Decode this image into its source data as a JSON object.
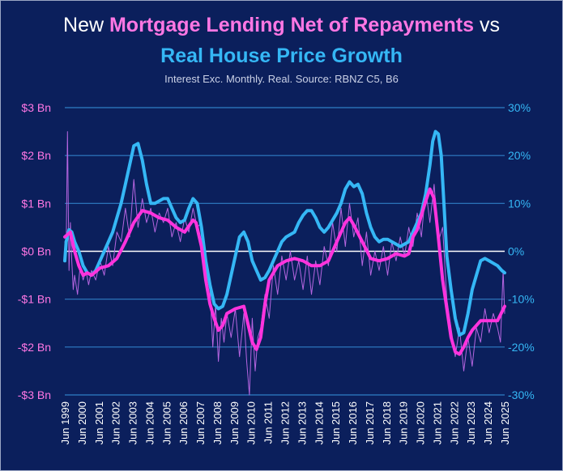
{
  "chart_data": {
    "type": "line",
    "title_prefix": "New ",
    "title_series1": "Mortgage Lending Net of Repayments",
    "title_mid": " vs",
    "title_series2": "Real House Price Growth",
    "subtitle": "Interest Exc. Monthly. Real. Source: RBNZ C5, B6",
    "left_axis": {
      "ylim": [
        -3,
        3
      ],
      "ticks": [
        3,
        2,
        1,
        0,
        -1,
        -2,
        -3
      ],
      "tick_labels": [
        "$3 Bn",
        "$2 Bn",
        "$1 Bn",
        "$0 Bn",
        "-$1 Bn",
        "-$2 Bn",
        "-$3 Bn"
      ],
      "color": "#ff77e4"
    },
    "right_axis": {
      "ylim": [
        -30,
        30
      ],
      "ticks": [
        30,
        20,
        10,
        0,
        -10,
        -20,
        -30
      ],
      "tick_labels": [
        "30%",
        "20%",
        "10%",
        "0%",
        "-10%",
        "-20%",
        "-30%"
      ],
      "color": "#35b7f5"
    },
    "x_axis": {
      "range": [
        1999.42,
        2025.42
      ],
      "tick_labels": [
        "Jun 1999",
        "Jun 2000",
        "Jun 2001",
        "Jun 2002",
        "Jun 2003",
        "Jun 2004",
        "Jun 2005",
        "Jun 2006",
        "Jun 2007",
        "Jun 2008",
        "Jun 2009",
        "Jun 2010",
        "Jun 2011",
        "Jun 2012",
        "Jun 2013",
        "Jun 2014",
        "Jun 2015",
        "Jun 2016",
        "Jun 2017",
        "Jun 2018",
        "Jun 2019",
        "Jun 2020",
        "Jun 2021",
        "Jun 2022",
        "Jun 2023",
        "Jun 2024",
        "Jun 2025"
      ]
    },
    "grid": true,
    "colors": {
      "background": "#0b1f5c",
      "grid": "#2f7fc6",
      "zero_line": "#ffffff",
      "lending_smooth": "#ff33dd",
      "lending_raw": "#b565e0",
      "house_price": "#35b7f5"
    },
    "series": [
      {
        "axis": "left",
        "style": "raw-monthly",
        "x": [
          1999.42,
          1999.5,
          1999.58,
          1999.67,
          1999.75,
          1999.83,
          1999.92,
          2000.0,
          2000.17,
          2000.33,
          2000.5,
          2000.67,
          2000.83,
          2001.0,
          2001.25,
          2001.5,
          2001.75,
          2002.0,
          2002.25,
          2002.5,
          2002.75,
          2003.0,
          2003.25,
          2003.5,
          2003.75,
          2004.0,
          2004.25,
          2004.5,
          2004.75,
          2005.0,
          2005.25,
          2005.5,
          2005.75,
          2006.0,
          2006.25,
          2006.5,
          2006.75,
          2007.0,
          2007.25,
          2007.5,
          2007.75,
          2008.0,
          2008.17,
          2008.33,
          2008.5,
          2008.67,
          2008.83,
          2009.0,
          2009.25,
          2009.5,
          2009.75,
          2010.0,
          2010.17,
          2010.33,
          2010.5,
          2010.67,
          2010.83,
          2011.0,
          2011.25,
          2011.5,
          2011.75,
          2012.0,
          2012.25,
          2012.5,
          2012.75,
          2013.0,
          2013.25,
          2013.5,
          2013.75,
          2014.0,
          2014.25,
          2014.5,
          2014.75,
          2015.0,
          2015.25,
          2015.5,
          2015.75,
          2016.0,
          2016.25,
          2016.5,
          2016.75,
          2017.0,
          2017.25,
          2017.5,
          2017.75,
          2018.0,
          2018.25,
          2018.5,
          2018.75,
          2019.0,
          2019.25,
          2019.5,
          2019.75,
          2020.0,
          2020.25,
          2020.5,
          2020.75,
          2021.0,
          2021.25,
          2021.5,
          2021.75,
          2022.0,
          2022.25,
          2022.5,
          2022.75,
          2023.0,
          2023.25,
          2023.5,
          2023.75,
          2024.0,
          2024.25,
          2024.5,
          2024.75,
          2025.0,
          2025.17,
          2025.33,
          2025.42
        ],
        "values": [
          0.2,
          0.0,
          2.5,
          -0.4,
          0.6,
          -0.2,
          -0.8,
          -0.5,
          -0.9,
          -0.3,
          -0.6,
          -0.4,
          -0.7,
          -0.4,
          -0.6,
          -0.2,
          -0.5,
          0.1,
          -0.3,
          0.4,
          0.2,
          0.9,
          0.3,
          1.5,
          0.5,
          1.1,
          0.6,
          0.9,
          0.4,
          0.8,
          0.6,
          0.9,
          0.3,
          0.6,
          0.2,
          0.7,
          0.4,
          0.9,
          0.5,
          0.6,
          -0.4,
          -0.8,
          -2.0,
          -1.1,
          -2.3,
          -1.4,
          -1.9,
          -1.3,
          -1.8,
          -1.2,
          -2.2,
          -1.3,
          -2.3,
          -3.0,
          -1.4,
          -2.5,
          -1.8,
          -1.6,
          -0.9,
          -1.4,
          -0.3,
          -0.9,
          -0.1,
          -0.6,
          0.0,
          -0.6,
          -0.2,
          -0.8,
          -0.1,
          -0.9,
          -0.2,
          -0.7,
          0.1,
          -0.3,
          0.6,
          0.0,
          0.9,
          0.1,
          1.0,
          0.3,
          0.7,
          -0.3,
          0.4,
          -0.5,
          0.0,
          -0.4,
          0.1,
          -0.5,
          0.2,
          -0.2,
          0.3,
          -0.1,
          0.5,
          0.1,
          0.8,
          0.3,
          1.3,
          0.6,
          1.4,
          0.2,
          0.5,
          -1.0,
          -1.6,
          -2.2,
          -1.6,
          -2.5,
          -1.8,
          -2.4,
          -1.6,
          -1.9,
          -1.2,
          -1.7,
          -1.3,
          -1.6,
          -1.9,
          -0.4,
          -1.3
        ]
      },
      {
        "axis": "left",
        "style": "smoothed",
        "x": [
          1999.42,
          1999.75,
          2000.0,
          2000.25,
          2000.5,
          2000.75,
          2001.0,
          2001.5,
          2002.0,
          2002.5,
          2003.0,
          2003.5,
          2004.0,
          2004.5,
          2005.0,
          2005.5,
          2006.0,
          2006.5,
          2007.0,
          2007.17,
          2007.5,
          2007.75,
          2008.0,
          2008.25,
          2008.5,
          2008.75,
          2009.0,
          2009.5,
          2010.0,
          2010.5,
          2010.75,
          2011.0,
          2011.25,
          2011.5,
          2012.0,
          2012.5,
          2013.0,
          2013.5,
          2014.0,
          2014.5,
          2015.0,
          2015.5,
          2016.0,
          2016.25,
          2016.5,
          2017.0,
          2017.5,
          2018.0,
          2018.5,
          2019.0,
          2019.5,
          2019.75,
          2020.0,
          2020.25,
          2020.5,
          2020.75,
          2021.0,
          2021.25,
          2021.5,
          2021.75,
          2022.0,
          2022.25,
          2022.5,
          2022.75,
          2023.0,
          2023.25,
          2023.5,
          2024.0,
          2024.5,
          2025.0,
          2025.42
        ],
        "values": [
          0.3,
          0.4,
          0.0,
          -0.3,
          -0.5,
          -0.45,
          -0.5,
          -0.35,
          -0.3,
          -0.15,
          0.2,
          0.6,
          0.85,
          0.8,
          0.7,
          0.65,
          0.5,
          0.4,
          0.65,
          0.6,
          0.1,
          -0.6,
          -1.1,
          -1.4,
          -1.65,
          -1.55,
          -1.3,
          -1.2,
          -1.15,
          -1.9,
          -2.05,
          -1.8,
          -1.1,
          -0.6,
          -0.3,
          -0.2,
          -0.15,
          -0.2,
          -0.3,
          -0.3,
          -0.2,
          0.2,
          0.6,
          0.7,
          0.55,
          0.2,
          -0.15,
          -0.2,
          -0.15,
          -0.05,
          -0.1,
          -0.05,
          0.3,
          0.45,
          0.75,
          1.05,
          1.3,
          1.1,
          0.3,
          -0.6,
          -1.2,
          -1.8,
          -2.1,
          -2.15,
          -2.0,
          -1.8,
          -1.65,
          -1.45,
          -1.45,
          -1.45,
          -1.15
        ]
      },
      {
        "axis": "right",
        "x": [
          1999.42,
          1999.5,
          1999.67,
          1999.83,
          2000.0,
          2000.25,
          2000.5,
          2000.75,
          2001.0,
          2001.25,
          2001.5,
          2001.75,
          2002.0,
          2002.25,
          2002.5,
          2002.75,
          2003.0,
          2003.25,
          2003.5,
          2003.75,
          2004.0,
          2004.25,
          2004.5,
          2004.75,
          2005.0,
          2005.25,
          2005.5,
          2005.75,
          2006.0,
          2006.25,
          2006.5,
          2006.75,
          2007.0,
          2007.25,
          2007.5,
          2007.75,
          2008.0,
          2008.25,
          2008.5,
          2008.75,
          2009.0,
          2009.25,
          2009.5,
          2009.75,
          2010.0,
          2010.25,
          2010.5,
          2010.75,
          2011.0,
          2011.25,
          2011.5,
          2011.75,
          2012.0,
          2012.25,
          2012.5,
          2012.75,
          2013.0,
          2013.25,
          2013.5,
          2013.75,
          2014.0,
          2014.25,
          2014.5,
          2014.75,
          2015.0,
          2015.25,
          2015.5,
          2015.75,
          2016.0,
          2016.25,
          2016.5,
          2016.75,
          2017.0,
          2017.25,
          2017.5,
          2017.75,
          2018.0,
          2018.25,
          2018.5,
          2018.75,
          2019.0,
          2019.25,
          2019.5,
          2019.75,
          2020.0,
          2020.25,
          2020.5,
          2020.75,
          2021.0,
          2021.17,
          2021.33,
          2021.5,
          2021.67,
          2021.83,
          2022.0,
          2022.25,
          2022.5,
          2022.75,
          2023.0,
          2023.25,
          2023.5,
          2023.75,
          2024.0,
          2024.25,
          2024.5,
          2024.75,
          2025.0,
          2025.25,
          2025.42
        ],
        "values": [
          -2,
          2,
          4.5,
          4,
          2,
          0,
          -3,
          -4.5,
          -5,
          -4,
          -2,
          0,
          2,
          4,
          7,
          10,
          14,
          18,
          22,
          22.5,
          19,
          14,
          10,
          10,
          10.5,
          11,
          11,
          9,
          7,
          6,
          6.5,
          9,
          11,
          10,
          5,
          -2,
          -7,
          -11,
          -12,
          -11.5,
          -9,
          -5,
          -1,
          3,
          4,
          2,
          -2,
          -4,
          -6,
          -5.5,
          -4,
          -2,
          0,
          2,
          3,
          3.5,
          4,
          6,
          7.5,
          8.5,
          8.5,
          7,
          5,
          4,
          5,
          6.5,
          8,
          10,
          13,
          14.5,
          13.5,
          14,
          12,
          8,
          5,
          3,
          2,
          2.5,
          2.5,
          2,
          1.5,
          1,
          1.5,
          2,
          4,
          6,
          8,
          12,
          18,
          23,
          25,
          24.5,
          20,
          10,
          -1,
          -8,
          -14,
          -17.5,
          -17,
          -13,
          -8,
          -5,
          -2,
          -1.5,
          -2,
          -2.5,
          -3,
          -4,
          -4.5
        ]
      }
    ]
  }
}
